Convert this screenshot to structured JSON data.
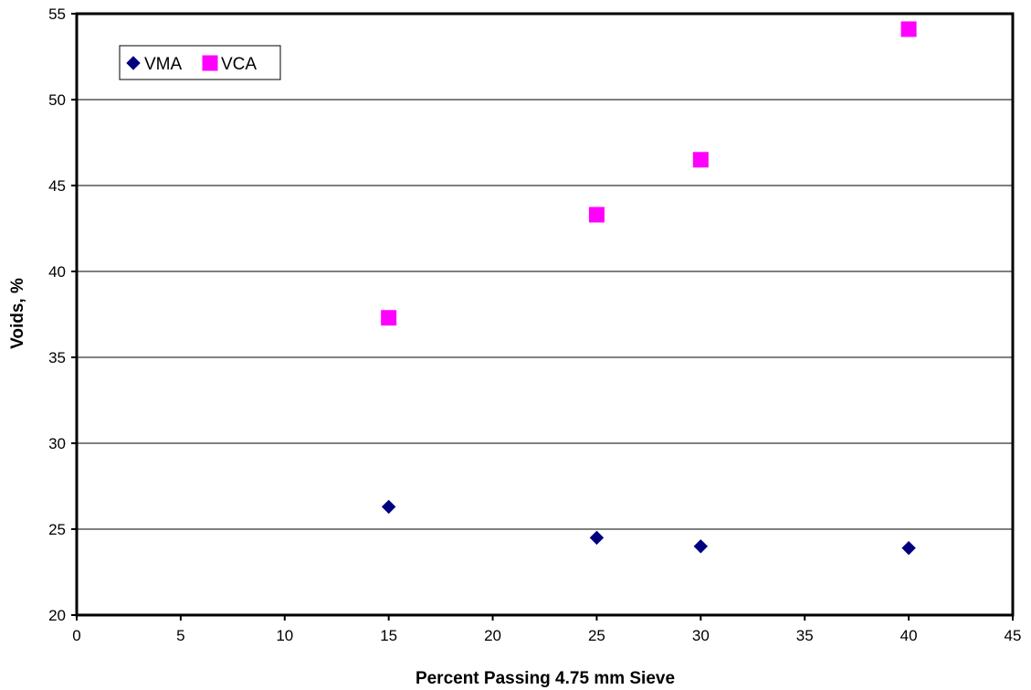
{
  "chart_data": {
    "type": "scatter",
    "title": "",
    "xlabel": "Percent Passing 4.75 mm Sieve",
    "ylabel": "Voids, %",
    "xlim": [
      0,
      45
    ],
    "ylim": [
      20,
      55
    ],
    "x_ticks": [
      0,
      5,
      10,
      15,
      20,
      25,
      30,
      35,
      40,
      45
    ],
    "y_ticks": [
      20,
      25,
      30,
      35,
      40,
      45,
      50,
      55
    ],
    "grid": "horizontal",
    "legend_position": "top-left",
    "series": [
      {
        "name": "VMA",
        "marker": "diamond",
        "color": "#00007F",
        "points": [
          {
            "x": 15,
            "y": 26.3
          },
          {
            "x": 25,
            "y": 24.5
          },
          {
            "x": 30,
            "y": 24.0
          },
          {
            "x": 40,
            "y": 23.9
          }
        ]
      },
      {
        "name": "VCA",
        "marker": "square",
        "color": "#FF00FF",
        "points": [
          {
            "x": 15,
            "y": 37.3
          },
          {
            "x": 25,
            "y": 43.3
          },
          {
            "x": 30,
            "y": 46.5
          },
          {
            "x": 40,
            "y": 54.1
          }
        ]
      }
    ]
  }
}
